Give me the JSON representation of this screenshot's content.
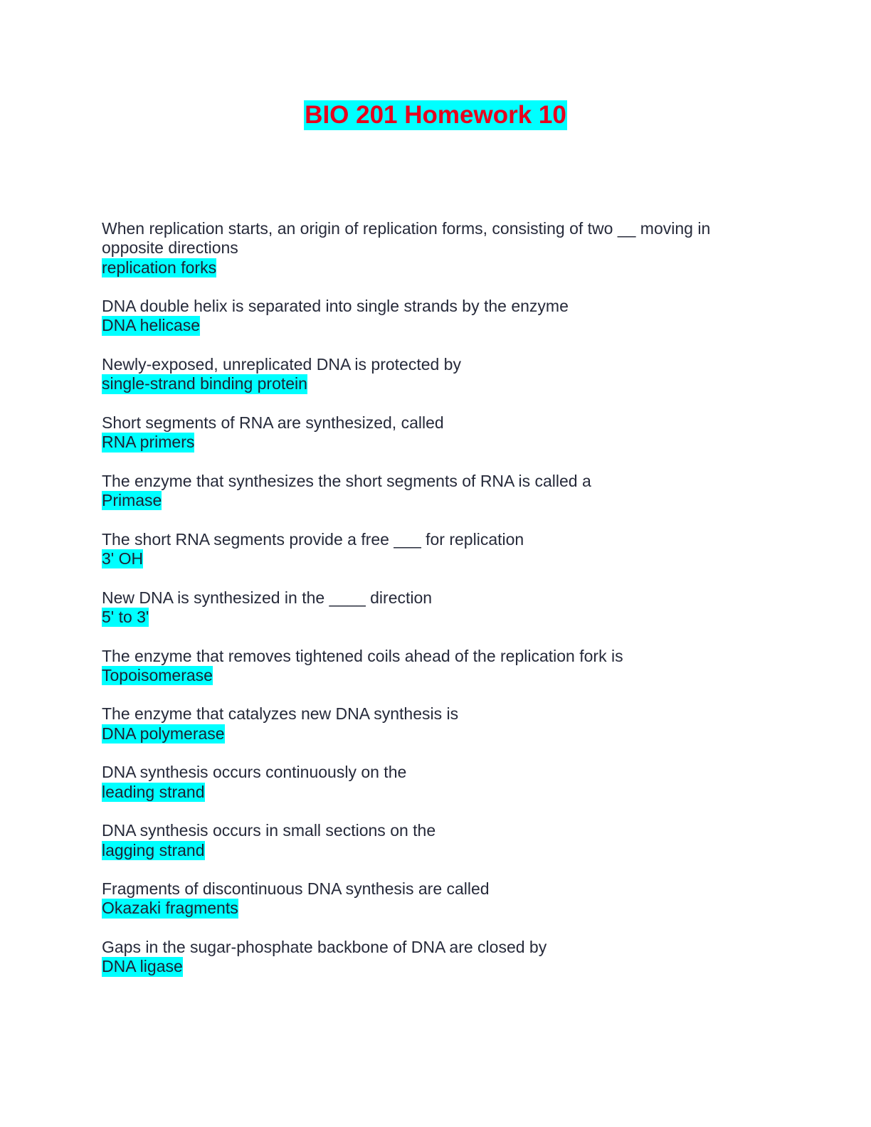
{
  "title": "BIO 201 Homework 10",
  "highlight_color": "#00ffff",
  "title_color": "#e8001c",
  "items": [
    {
      "q": "When replication starts, an origin of replication forms, consisting of two __ moving in opposite directions",
      "a": "replication forks"
    },
    {
      "q": "DNA double helix is separated into single strands by the enzyme",
      "a": "DNA helicase"
    },
    {
      "q": "Newly-exposed, unreplicated DNA is protected by",
      "a": "single-strand binding protein"
    },
    {
      "q": "Short segments of RNA are synthesized, called",
      "a": "RNA primers"
    },
    {
      "q": "The enzyme that synthesizes the short segments of RNA is called a",
      "a": "Primase"
    },
    {
      "q": "The short RNA segments provide a free ___ for replication",
      "a": "3' OH"
    },
    {
      "q": "New DNA is synthesized in the ____ direction",
      "a": "5' to 3'"
    },
    {
      "q": "The enzyme that removes tightened coils ahead of the replication fork is",
      "a": "Topoisomerase"
    },
    {
      "q": "The enzyme that catalyzes new DNA synthesis is",
      "a": "DNA polymerase"
    },
    {
      "q": "DNA synthesis occurs continuously on the",
      "a": "leading strand"
    },
    {
      "q": "DNA synthesis occurs in small sections on the",
      "a": "lagging strand"
    },
    {
      "q": "Fragments of discontinuous DNA synthesis are called",
      "a": "Okazaki fragments"
    },
    {
      "q": "Gaps in the sugar-phosphate backbone of DNA are closed by",
      "a": "DNA ligase"
    }
  ]
}
